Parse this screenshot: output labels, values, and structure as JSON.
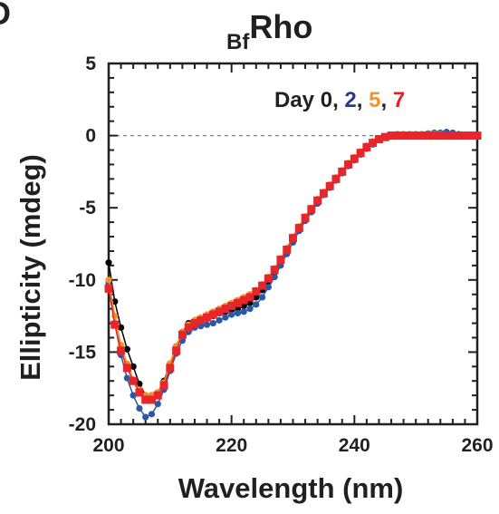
{
  "panel_label": "D",
  "colors": {
    "day0": "#000000",
    "day2": "#2b58a6",
    "day5": "#f5921e",
    "day7": "#e8252a",
    "axis": "#231f20",
    "zero_line": "#808080"
  },
  "chart_data": {
    "type": "line",
    "title_prefix": "Bf",
    "title_main": "Rho",
    "xlabel": "Wavelength (nm)",
    "ylabel": "Ellipticity (mdeg)",
    "xlim": [
      200,
      260
    ],
    "ylim": [
      -20,
      5
    ],
    "xticks": [
      200,
      220,
      240,
      260
    ],
    "yticks": [
      5,
      0,
      -5,
      -10,
      -15,
      -20
    ],
    "zero_line": true,
    "legend": {
      "prefix": "Day ",
      "items": [
        {
          "label": "0",
          "color": "#231f20"
        },
        {
          "label": "2",
          "color": "#2b3990"
        },
        {
          "label": "5",
          "color": "#f7941d"
        },
        {
          "label": "7",
          "color": "#ed1c24"
        }
      ]
    },
    "x": [
      200,
      201,
      202,
      203,
      204,
      205,
      206,
      207,
      208,
      209,
      210,
      211,
      212,
      213,
      214,
      215,
      216,
      217,
      218,
      219,
      220,
      221,
      222,
      223,
      224,
      225,
      226,
      227,
      228,
      229,
      230,
      231,
      232,
      233,
      234,
      235,
      236,
      237,
      238,
      239,
      240,
      241,
      242,
      243,
      244,
      245,
      246,
      247,
      248,
      249,
      250,
      251,
      252,
      253,
      254,
      255,
      256,
      257,
      258,
      259,
      260
    ],
    "series": [
      {
        "name": "Day 0",
        "marker": "circle",
        "values": [
          -8.8,
          -11.5,
          -13.3,
          -14.8,
          -16.0,
          -17.2,
          -18.0,
          -18.0,
          -17.8,
          -17.0,
          -15.8,
          -14.6,
          -13.6,
          -13.0,
          -12.8,
          -12.7,
          -12.6,
          -12.5,
          -12.3,
          -12.2,
          -12.1,
          -12.0,
          -11.8,
          -11.6,
          -11.2,
          -10.7,
          -10.2,
          -9.5,
          -8.7,
          -7.9,
          -7.1,
          -6.4,
          -5.8,
          -5.2,
          -4.7,
          -4.1,
          -3.6,
          -3.1,
          -2.6,
          -2.1,
          -1.7,
          -1.3,
          -0.9,
          -0.6,
          -0.3,
          -0.1,
          0.0,
          0.05,
          0.05,
          0.05,
          0.05,
          0.05,
          0.05,
          0.05,
          0.05,
          0.05,
          0.05,
          0.05,
          0.05,
          0.05,
          0.05
        ]
      },
      {
        "name": "Day 2",
        "marker": "circle",
        "values": [
          -10.2,
          -13.0,
          -15.2,
          -16.8,
          -18.0,
          -18.9,
          -19.5,
          -19.3,
          -18.6,
          -17.6,
          -16.3,
          -15.1,
          -14.2,
          -13.6,
          -13.3,
          -13.2,
          -13.1,
          -13.0,
          -12.8,
          -12.6,
          -12.4,
          -12.3,
          -12.2,
          -12.0,
          -11.7,
          -11.2,
          -10.5,
          -9.8,
          -9.0,
          -8.2,
          -7.4,
          -6.6,
          -5.9,
          -5.3,
          -4.7,
          -4.1,
          -3.6,
          -3.1,
          -2.6,
          -2.1,
          -1.7,
          -1.3,
          -0.9,
          -0.6,
          -0.3,
          -0.1,
          0.05,
          0.1,
          0.1,
          0.1,
          0.1,
          0.1,
          0.15,
          0.2,
          0.2,
          0.25,
          0.2,
          0.1,
          0.05,
          0.05,
          0.05
        ]
      },
      {
        "name": "Day 5",
        "marker": "circle",
        "values": [
          -10.0,
          -12.5,
          -14.5,
          -15.8,
          -16.9,
          -17.6,
          -18.0,
          -18.0,
          -17.8,
          -17.1,
          -15.8,
          -14.6,
          -13.6,
          -13.1,
          -12.8,
          -12.6,
          -12.4,
          -12.2,
          -12.0,
          -11.8,
          -11.6,
          -11.4,
          -11.2,
          -11.0,
          -10.7,
          -10.3,
          -9.8,
          -9.2,
          -8.5,
          -7.8,
          -7.0,
          -6.3,
          -5.6,
          -5.0,
          -4.4,
          -3.9,
          -3.4,
          -2.9,
          -2.4,
          -1.9,
          -1.5,
          -1.1,
          -0.7,
          -0.4,
          -0.2,
          -0.05,
          0.05,
          0.1,
          0.1,
          0.1,
          0.1,
          0.1,
          0.1,
          0.1,
          0.1,
          0.05,
          0.05,
          0.05,
          0.05,
          0.05,
          0.05
        ]
      },
      {
        "name": "Day 7",
        "marker": "square",
        "values": [
          -10.6,
          -13.1,
          -14.9,
          -16.1,
          -17.0,
          -17.8,
          -18.3,
          -18.3,
          -18.0,
          -17.3,
          -16.1,
          -14.9,
          -13.8,
          -13.3,
          -13.0,
          -12.8,
          -12.6,
          -12.4,
          -12.2,
          -12.0,
          -11.8,
          -11.6,
          -11.4,
          -11.2,
          -10.8,
          -10.4,
          -9.9,
          -9.3,
          -8.6,
          -7.9,
          -7.1,
          -6.4,
          -5.7,
          -5.1,
          -4.5,
          -4.0,
          -3.5,
          -3.0,
          -2.5,
          -2.0,
          -1.6,
          -1.2,
          -0.8,
          -0.5,
          -0.25,
          -0.1,
          0.0,
          0.0,
          0.0,
          0.0,
          0.0,
          0.0,
          0.0,
          0.0,
          0.0,
          0.0,
          0.0,
          0.0,
          0.0,
          0.0,
          0.0
        ]
      }
    ]
  }
}
